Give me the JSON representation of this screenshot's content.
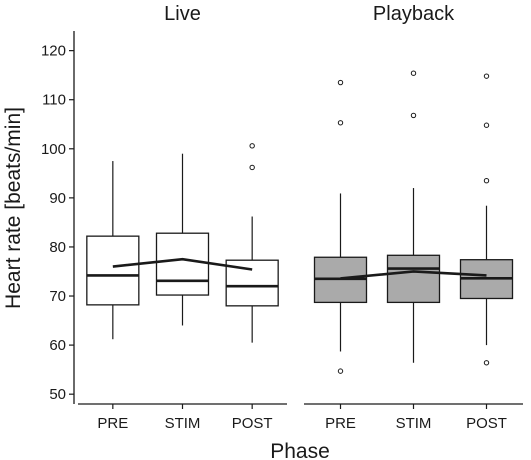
{
  "chart_data": {
    "type": "box",
    "ylabel": "Heart rate [beats/min]",
    "xlabel": "Phase",
    "ylim": [
      48,
      124
    ],
    "yticks": [
      50,
      60,
      70,
      80,
      90,
      100,
      110,
      120
    ],
    "categories": [
      "PRE",
      "STIM",
      "POST"
    ],
    "colors": {
      "Live": "#ffffff",
      "Playback": "#aaaaaa",
      "stroke": "#1a1a1a"
    },
    "panels": [
      {
        "title": "Live",
        "boxes": [
          {
            "category": "PRE",
            "whisker_low": 61.2,
            "q1": 68.2,
            "median": 74.2,
            "q3": 82.2,
            "whisker_high": 97.5,
            "outliers": []
          },
          {
            "category": "STIM",
            "whisker_low": 64.0,
            "q1": 70.2,
            "median": 73.1,
            "q3": 82.8,
            "whisker_high": 99.0,
            "outliers": []
          },
          {
            "category": "POST",
            "whisker_low": 60.5,
            "q1": 68.0,
            "median": 72.0,
            "q3": 77.3,
            "whisker_high": 86.2,
            "outliers": [
              96.2,
              100.6
            ]
          }
        ],
        "mean_line": [
          76.0,
          77.5,
          75.4
        ]
      },
      {
        "title": "Playback",
        "boxes": [
          {
            "category": "PRE",
            "whisker_low": 58.7,
            "q1": 68.7,
            "median": 73.5,
            "q3": 77.9,
            "whisker_high": 90.9,
            "outliers": [
              54.7,
              105.3,
              113.5
            ]
          },
          {
            "category": "STIM",
            "whisker_low": 56.4,
            "q1": 68.7,
            "median": 75.6,
            "q3": 78.3,
            "whisker_high": 92.0,
            "outliers": [
              106.8,
              115.4
            ]
          },
          {
            "category": "POST",
            "whisker_low": 60.0,
            "q1": 69.5,
            "median": 73.6,
            "q3": 77.4,
            "whisker_high": 88.4,
            "outliers": [
              56.4,
              93.5,
              104.8,
              114.8
            ]
          }
        ],
        "mean_line": [
          73.6,
          75.0,
          74.2
        ]
      }
    ]
  }
}
